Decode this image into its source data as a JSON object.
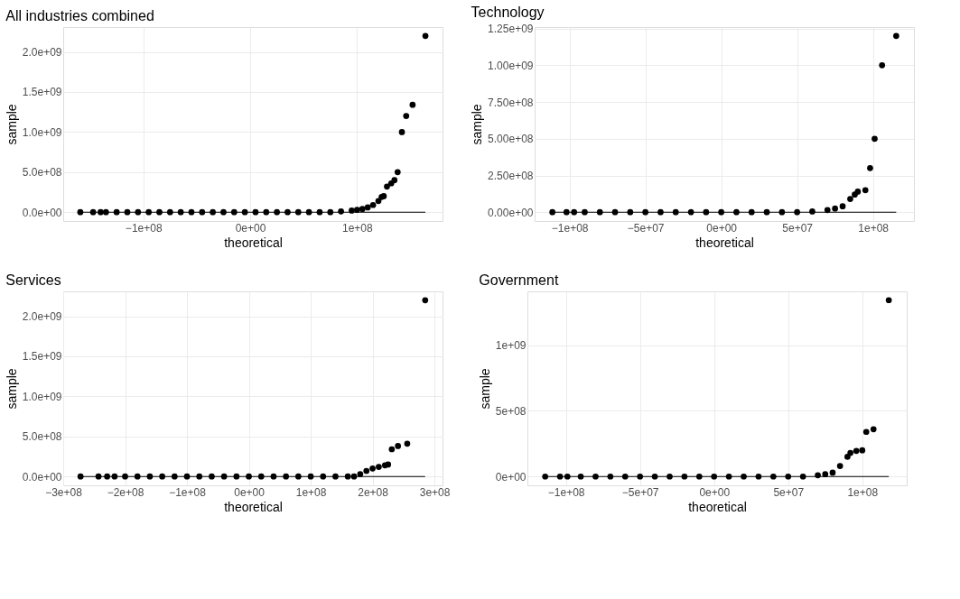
{
  "chart_data": [
    {
      "type": "scatter",
      "title": "All industries combined",
      "xlabel": "theoretical",
      "ylabel": "sample",
      "grid": true,
      "marker": "circle",
      "xlim": [
        -175000000.0,
        180000000.0
      ],
      "ylim": [
        -110000000.0,
        2310000000.0
      ],
      "xticks": [
        {
          "value": -100000000.0,
          "label": "−1e+08"
        },
        {
          "value": 0,
          "label": "0e+00"
        },
        {
          "value": 100000000.0,
          "label": "1e+08"
        }
      ],
      "yticks": [
        {
          "value": 0,
          "label": "0.0e+00"
        },
        {
          "value": 500000000.0,
          "label": "5.0e+08"
        },
        {
          "value": 1000000000.0,
          "label": "1.0e+09"
        },
        {
          "value": 1500000000.0,
          "label": "1.5e+09"
        },
        {
          "value": 2000000000.0,
          "label": "2.0e+09"
        }
      ],
      "series": [
        {
          "color": "#000000",
          "x": [
            -159000000.0,
            -147000000.0,
            -140000000.0,
            -135000000.0,
            -125000000.0,
            -115000000.0,
            -105000000.0,
            -95000000.0,
            -85000000.0,
            -75000000.0,
            -65000000.0,
            -55000000.0,
            -45000000.0,
            -35000000.0,
            -25000000.0,
            -15000000.0,
            -5000000.0,
            5000000.0,
            15000000.0,
            25000000.0,
            35000000.0,
            45000000.0,
            55000000.0,
            65000000.0,
            75000000.0,
            85000000.0,
            95000000.0,
            100000000.0,
            105000000.0,
            110000000.0,
            115000000.0,
            120000000.0,
            123000000.0,
            125000000.0,
            128000000.0,
            132000000.0,
            135000000.0,
            138000000.0,
            142000000.0,
            146000000.0,
            152000000.0,
            164000000.0
          ],
          "values": [
            0,
            0,
            0,
            0,
            0,
            0,
            0,
            0,
            0,
            0,
            0,
            0,
            0,
            0,
            0,
            0,
            0,
            0,
            0,
            0,
            0,
            0,
            0,
            0,
            0,
            10000000.0,
            20000000.0,
            30000000.0,
            40000000.0,
            60000000.0,
            90000000.0,
            140000000.0,
            190000000.0,
            200000000.0,
            320000000.0,
            360000000.0,
            400000000.0,
            500000000.0,
            1000000000.0,
            1200000000.0,
            1340000000.0,
            2200000000.0
          ]
        },
        {
          "type": "line",
          "color": "#000000",
          "marker": "none",
          "x": [
            -159000000.0,
            164000000.0
          ],
          "values": [
            0,
            0
          ]
        }
      ]
    },
    {
      "type": "scatter",
      "title": "Technology",
      "xlabel": "theoretical",
      "ylabel": "sample",
      "grid": true,
      "marker": "circle",
      "xlim": [
        -123000000.0,
        127000000.0
      ],
      "ylim": [
        -60000000.0,
        1260000000.0
      ],
      "xticks": [
        {
          "value": -100000000.0,
          "label": "−1e+08"
        },
        {
          "value": -50000000.0,
          "label": "−5e+07"
        },
        {
          "value": 0,
          "label": "0e+00"
        },
        {
          "value": 50000000.0,
          "label": "5e+07"
        },
        {
          "value": 100000000.0,
          "label": "1e+08"
        }
      ],
      "yticks": [
        {
          "value": 0,
          "label": "0.00e+00"
        },
        {
          "value": 250000000.0,
          "label": "2.50e+08"
        },
        {
          "value": 500000000.0,
          "label": "5.00e+08"
        },
        {
          "value": 750000000.0,
          "label": "7.50e+08"
        },
        {
          "value": 1000000000.0,
          "label": "1.00e+09"
        },
        {
          "value": 1250000000.0,
          "label": "1.25e+09"
        }
      ],
      "series": [
        {
          "color": "#000000",
          "x": [
            -111300000.0,
            -102000000.0,
            -97000000.0,
            -90000000.0,
            -80000000.0,
            -70000000.0,
            -60000000.0,
            -50000000.0,
            -40000000.0,
            -30000000.0,
            -20000000.0,
            -10000000.0,
            0,
            10000000.0,
            20000000.0,
            30000000.0,
            40000000.0,
            50000000.0,
            60000000.0,
            70000000.0,
            75000000.0,
            80000000.0,
            85000000.0,
            88000000.0,
            90000000.0,
            95000000.0,
            98100000.0,
            101100000.0,
            106000000.0,
            115300000.0
          ],
          "values": [
            0,
            0,
            0,
            0,
            0,
            0,
            0,
            0,
            0,
            0,
            0,
            0,
            0,
            0,
            0,
            0,
            0,
            0,
            5000000.0,
            15000000.0,
            25000000.0,
            40000000.0,
            90000000.0,
            120000000.0,
            140000000.0,
            150000000.0,
            300000000.0,
            500000000.0,
            1000000000.0,
            1200000000.0
          ]
        },
        {
          "type": "line",
          "color": "#000000",
          "marker": "none",
          "x": [
            -111300000.0,
            115300000.0
          ],
          "values": [
            0,
            0
          ]
        }
      ]
    },
    {
      "type": "scatter",
      "title": "Services",
      "xlabel": "theoretical",
      "ylabel": "sample",
      "grid": true,
      "marker": "circle",
      "xlim": [
        -300000000.0,
        313000000.0
      ],
      "ylim": [
        -110000000.0,
        2310000000.0
      ],
      "xticks": [
        {
          "value": -300000000.0,
          "label": "−3e+08"
        },
        {
          "value": -200000000.0,
          "label": "−2e+08"
        },
        {
          "value": -100000000.0,
          "label": "−1e+08"
        },
        {
          "value": 0,
          "label": "0e+00"
        },
        {
          "value": 100000000.0,
          "label": "1e+08"
        },
        {
          "value": 200000000.0,
          "label": "2e+08"
        },
        {
          "value": 300000000.0,
          "label": "3e+08"
        }
      ],
      "yticks": [
        {
          "value": 0,
          "label": "0.0e+00"
        },
        {
          "value": 500000000.0,
          "label": "5.0e+08"
        },
        {
          "value": 1000000000.0,
          "label": "1.0e+09"
        },
        {
          "value": 1500000000.0,
          "label": "1.5e+09"
        },
        {
          "value": 2000000000.0,
          "label": "2.0e+09"
        }
      ],
      "series": [
        {
          "color": "#000000",
          "x": [
            -272000000.0,
            -243000000.0,
            -229000000.0,
            -217000000.0,
            -200000000.0,
            -180000000.0,
            -160000000.0,
            -140000000.0,
            -120000000.0,
            -100000000.0,
            -80000000.0,
            -60000000.0,
            -40000000.0,
            -20000000.0,
            0,
            20000000.0,
            40000000.0,
            60000000.0,
            80000000.0,
            100000000.0,
            120000000.0,
            140000000.0,
            160000000.0,
            170000000.0,
            180000000.0,
            190000000.0,
            200000000.0,
            210000000.0,
            220000000.0,
            225000000.0,
            231000000.0,
            241000000.0,
            256000000.0,
            285000000.0
          ],
          "values": [
            0,
            0,
            0,
            0,
            0,
            0,
            0,
            0,
            0,
            0,
            0,
            0,
            0,
            0,
            0,
            0,
            0,
            0,
            0,
            0,
            0,
            0,
            0,
            0,
            30000000.0,
            70000000.0,
            100000000.0,
            120000000.0,
            140000000.0,
            150000000.0,
            340000000.0,
            380000000.0,
            410000000.0,
            2200000000.0
          ]
        },
        {
          "type": "line",
          "color": "#000000",
          "marker": "none",
          "x": [
            -272000000.0,
            285000000.0
          ],
          "values": [
            0,
            0
          ]
        }
      ]
    },
    {
      "type": "scatter",
      "title": "Government",
      "xlabel": "theoretical",
      "ylabel": "sample",
      "grid": true,
      "marker": "circle",
      "xlim": [
        -126000000.0,
        130000000.0
      ],
      "ylim": [
        -67000000.0,
        1410000000.0
      ],
      "xticks": [
        {
          "value": -100000000.0,
          "label": "−1e+08"
        },
        {
          "value": -50000000.0,
          "label": "−5e+07"
        },
        {
          "value": 0,
          "label": "0e+00"
        },
        {
          "value": 50000000.0,
          "label": "5e+07"
        },
        {
          "value": 100000000.0,
          "label": "1e+08"
        }
      ],
      "yticks": [
        {
          "value": 0,
          "label": "0e+00"
        },
        {
          "value": 500000000.0,
          "label": "5e+08"
        },
        {
          "value": 1000000000.0,
          "label": "1e+09"
        }
      ],
      "series": [
        {
          "color": "#000000",
          "x": [
            -114000000.0,
            -104000000.0,
            -99000000.0,
            -90000000.0,
            -80000000.0,
            -70000000.0,
            -60000000.0,
            -50000000.0,
            -40000000.0,
            -30000000.0,
            -20000000.0,
            -10000000.0,
            0,
            10000000.0,
            20000000.0,
            30000000.0,
            40000000.0,
            50000000.0,
            60000000.0,
            70000000.0,
            75000000.0,
            80000000.0,
            85000000.0,
            90000000.0,
            92000000.0,
            96000000.0,
            100000000.0,
            102700000.0,
            107600000.0,
            117900000.0
          ],
          "values": [
            0,
            0,
            0,
            0,
            0,
            0,
            0,
            0,
            0,
            0,
            0,
            0,
            0,
            0,
            0,
            0,
            0,
            0,
            0,
            10000000.0,
            18000000.0,
            30000000.0,
            80000000.0,
            150000000.0,
            180000000.0,
            195000000.0,
            200000000.0,
            340000000.0,
            360000000.0,
            1343000000.0
          ]
        },
        {
          "type": "line",
          "color": "#000000",
          "marker": "none",
          "x": [
            -114000000.0,
            117900000.0
          ],
          "values": [
            0,
            0
          ]
        }
      ]
    }
  ]
}
